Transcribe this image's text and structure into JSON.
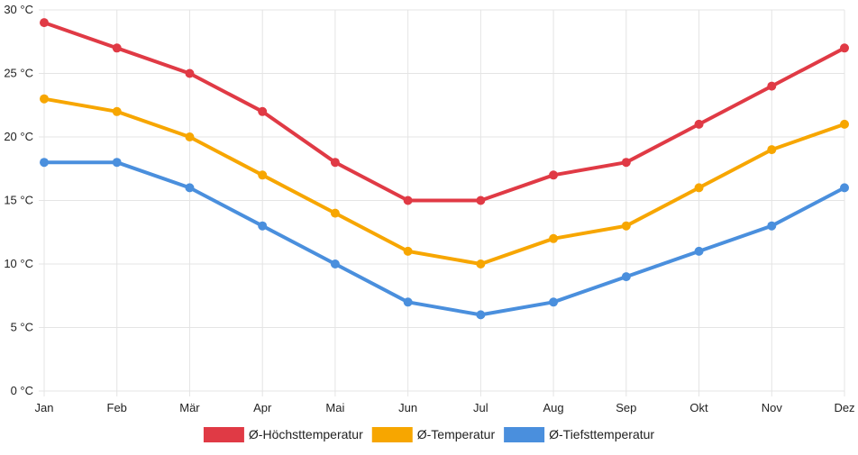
{
  "chart_data": {
    "type": "line",
    "categories": [
      "Jan",
      "Feb",
      "Mär",
      "Apr",
      "Mai",
      "Jun",
      "Jul",
      "Aug",
      "Sep",
      "Okt",
      "Nov",
      "Dez"
    ],
    "ylim": [
      0,
      30
    ],
    "ytick_step": 5,
    "yunit": "°C",
    "grid": true,
    "legend_position": "bottom",
    "series": [
      {
        "name": "Ø-Höchsttemperatur",
        "color": "#e03a45",
        "values": [
          29,
          27,
          25,
          22,
          18,
          15,
          15,
          17,
          18,
          21,
          24,
          27
        ]
      },
      {
        "name": "Ø-Temperatur",
        "color": "#f7a600",
        "values": [
          23,
          22,
          20,
          17,
          14,
          11,
          10,
          12,
          13,
          16,
          19,
          21
        ]
      },
      {
        "name": "Ø-Tiefsttemperatur",
        "color": "#4a8fdd",
        "values": [
          18,
          18,
          16,
          13,
          10,
          7,
          6,
          7,
          9,
          11,
          13,
          16
        ]
      }
    ]
  }
}
